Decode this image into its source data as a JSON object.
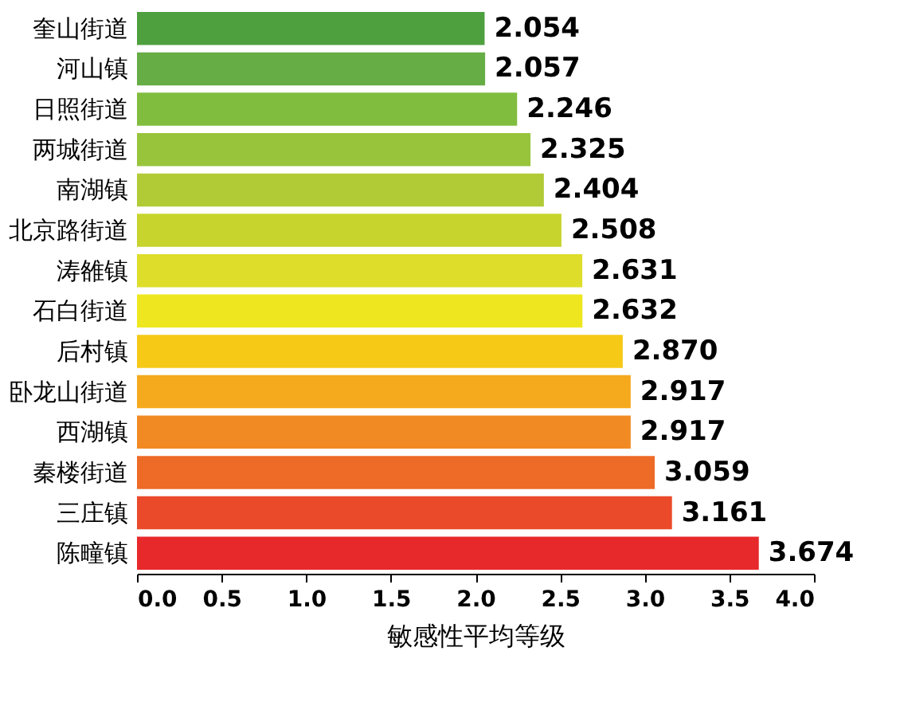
{
  "chart_data": {
    "type": "bar",
    "orientation": "horizontal",
    "xlabel": "敏感性平均等级",
    "categories": [
      "奎山街道",
      "河山镇",
      "日照街道",
      "两城街道",
      "南湖镇",
      "北京路街道",
      "涛雒镇",
      "石白街道",
      "后村镇",
      "卧龙山街道",
      "西湖镇",
      "秦楼街道",
      "三庄镇",
      "陈疃镇"
    ],
    "values": [
      2.054,
      2.057,
      2.246,
      2.325,
      2.404,
      2.508,
      2.631,
      2.632,
      2.87,
      2.917,
      2.917,
      3.059,
      3.161,
      3.674
    ],
    "value_labels": [
      "2.054",
      "2.057",
      "2.246",
      "2.325",
      "2.404",
      "2.508",
      "2.631",
      "2.632",
      "2.870",
      "2.917",
      "2.917",
      "3.059",
      "3.161",
      "3.674"
    ],
    "colors": [
      "#4ea03f",
      "#66ad45",
      "#80bd3f",
      "#98c43c",
      "#b0cb35",
      "#c8d42e",
      "#dedd2a",
      "#eee71f",
      "#f5c916",
      "#f5a91d",
      "#f28a24",
      "#ee6a27",
      "#eb4a2a",
      "#e8292b"
    ],
    "xlim": [
      0,
      4.0
    ],
    "xticks": [
      {
        "value": 0,
        "label": "0.0"
      },
      0.5,
      {
        "value": 1,
        "label": "1.0"
      },
      1.5,
      {
        "value": 2,
        "label": "2.0"
      },
      2.5,
      {
        "value": 3,
        "label": "3.0"
      },
      3.5,
      {
        "value": 4,
        "label": "4.0"
      }
    ]
  }
}
